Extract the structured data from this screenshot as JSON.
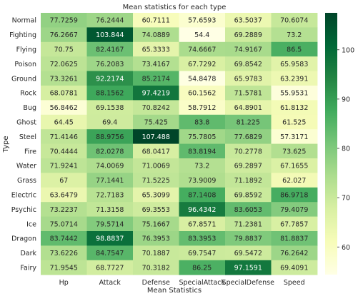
{
  "chart_data": {
    "type": "heatmap",
    "title": "Mean statistics for each type",
    "xlabel": "Mean Statistics",
    "ylabel": "Type",
    "columns": [
      "Hp",
      "Attack",
      "Defense",
      "SpecialAttack",
      "SpecialDefense",
      "Speed"
    ],
    "rows": [
      "Normal",
      "Fighting",
      "Flying",
      "Poison",
      "Ground",
      "Rock",
      "Bug",
      "Ghost",
      "Steel",
      "Fire",
      "Water",
      "Grass",
      "Electric",
      "Psychic",
      "Ice",
      "Dragon",
      "Dark",
      "Fairy"
    ],
    "values": [
      [
        77.7259,
        76.2444,
        60.7111,
        57.6593,
        63.5037,
        70.6074
      ],
      [
        76.2667,
        103.844,
        74.0889,
        54.4,
        69.2889,
        73.2
      ],
      [
        70.75,
        82.4167,
        65.3333,
        74.6667,
        74.9167,
        86.5
      ],
      [
        72.0625,
        76.2083,
        73.4167,
        67.7292,
        69.8542,
        65.9583
      ],
      [
        73.3261,
        92.2174,
        85.2174,
        54.8478,
        65.9783,
        63.2391
      ],
      [
        68.0781,
        88.1562,
        97.4219,
        60.1562,
        71.5781,
        55.9531
      ],
      [
        56.8462,
        69.1538,
        70.8242,
        58.7912,
        64.8901,
        61.8132
      ],
      [
        64.45,
        69.4,
        75.425,
        83.8,
        81.225,
        61.525
      ],
      [
        71.4146,
        88.9756,
        107.488,
        75.7805,
        77.6829,
        57.3171
      ],
      [
        70.4444,
        82.0278,
        68.0417,
        83.8194,
        70.2778,
        73.625
      ],
      [
        71.9241,
        74.0069,
        71.0069,
        73.2,
        69.2897,
        67.1655
      ],
      [
        67,
        77.1441,
        71.5225,
        73.9009,
        71.1892,
        62.027
      ],
      [
        63.6479,
        72.7183,
        65.3099,
        87.1408,
        69.8592,
        86.9718
      ],
      [
        73.2237,
        71.3158,
        69.3553,
        96.4342,
        83.6053,
        79.4079
      ],
      [
        75.0714,
        79.5714,
        75.1667,
        67.8571,
        71.2381,
        67.7857
      ],
      [
        83.7442,
        98.8837,
        76.3953,
        83.3953,
        79.8837,
        81.8837
      ],
      [
        73.6226,
        84.7547,
        70.1887,
        69.7547,
        69.5472,
        76.2642
      ],
      [
        71.9545,
        68.7727,
        70.3182,
        86.25,
        97.1591,
        69.4091
      ]
    ],
    "value_labels": [
      [
        "77.7259",
        "76.2444",
        "60.7111",
        "57.6593",
        "63.5037",
        "70.6074"
      ],
      [
        "76.2667",
        "103.844",
        "74.0889",
        "54.4",
        "69.2889",
        "73.2"
      ],
      [
        "70.75",
        "82.4167",
        "65.3333",
        "74.6667",
        "74.9167",
        "86.5"
      ],
      [
        "72.0625",
        "76.2083",
        "73.4167",
        "67.7292",
        "69.8542",
        "65.9583"
      ],
      [
        "73.3261",
        "92.2174",
        "85.2174",
        "54.8478",
        "65.9783",
        "63.2391"
      ],
      [
        "68.0781",
        "88.1562",
        "97.4219",
        "60.1562",
        "71.5781",
        "55.9531"
      ],
      [
        "56.8462",
        "69.1538",
        "70.8242",
        "58.7912",
        "64.8901",
        "61.8132"
      ],
      [
        "64.45",
        "69.4",
        "75.425",
        "83.8",
        "81.225",
        "61.525"
      ],
      [
        "71.4146",
        "88.9756",
        "107.488",
        "75.7805",
        "77.6829",
        "57.3171"
      ],
      [
        "70.4444",
        "82.0278",
        "68.0417",
        "83.8194",
        "70.2778",
        "73.625"
      ],
      [
        "71.9241",
        "74.0069",
        "71.0069",
        "73.2",
        "69.2897",
        "67.1655"
      ],
      [
        "67",
        "77.1441",
        "71.5225",
        "73.9009",
        "71.1892",
        "62.027"
      ],
      [
        "63.6479",
        "72.7183",
        "65.3099",
        "87.1408",
        "69.8592",
        "86.9718"
      ],
      [
        "73.2237",
        "71.3158",
        "69.3553",
        "96.4342",
        "83.6053",
        "79.4079"
      ],
      [
        "75.0714",
        "79.5714",
        "75.1667",
        "67.8571",
        "71.2381",
        "67.7857"
      ],
      [
        "83.7442",
        "98.8837",
        "76.3953",
        "83.3953",
        "79.8837",
        "81.8837"
      ],
      [
        "73.6226",
        "84.7547",
        "70.1887",
        "69.7547",
        "69.5472",
        "76.2642"
      ],
      [
        "71.9545",
        "68.7727",
        "70.3182",
        "86.25",
        "97.1591",
        "69.4091"
      ]
    ],
    "colormap": "YlGn",
    "color_range": [
      54.4,
      107.488
    ],
    "colorbar_ticks": [
      60,
      70,
      80,
      90,
      100
    ],
    "grid": false
  }
}
